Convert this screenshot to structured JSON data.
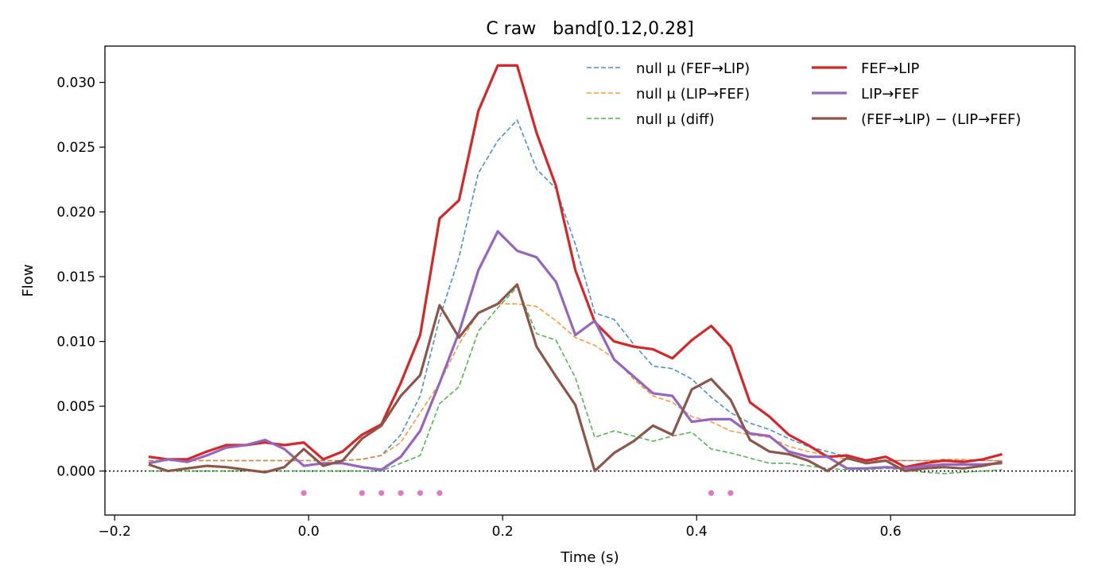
{
  "chart_data": {
    "type": "line",
    "title": "C raw   band[0.12,0.28]",
    "xlabel": "Time (s)",
    "ylabel": "Flow",
    "xlim": [
      -0.21,
      0.79
    ],
    "ylim": [
      -0.0034,
      0.0328
    ],
    "xticks": [
      -0.2,
      0.0,
      0.2,
      0.4,
      0.6
    ],
    "xtick_labels": [
      "−0.2",
      "0.0",
      "0.2",
      "0.4",
      "0.6"
    ],
    "yticks": [
      0.0,
      0.005,
      0.01,
      0.015,
      0.02,
      0.025,
      0.03
    ],
    "ytick_labels": [
      "0.000",
      "0.005",
      "0.010",
      "0.015",
      "0.020",
      "0.025",
      "0.030"
    ],
    "grid": false,
    "legend_position": "top-right",
    "zero_line": true,
    "x": [
      -0.165,
      -0.145,
      -0.125,
      -0.105,
      -0.085,
      -0.065,
      -0.045,
      -0.025,
      -0.005,
      0.015,
      0.035,
      0.055,
      0.075,
      0.095,
      0.115,
      0.135,
      0.155,
      0.175,
      0.195,
      0.215,
      0.235,
      0.255,
      0.275,
      0.295,
      0.315,
      0.335,
      0.355,
      0.375,
      0.395,
      0.415,
      0.435,
      0.455,
      0.475,
      0.495,
      0.515,
      0.535,
      0.555,
      0.575,
      0.595,
      0.615,
      0.635,
      0.655,
      0.675,
      0.695,
      0.715
    ],
    "series": [
      {
        "name": "null μ (FEF→LIP)",
        "color": "#1f77b4",
        "style": "dashed",
        "width": 1.6,
        "opacity": 0.8,
        "values": [
          0.0008,
          0.0008,
          0.0008,
          0.0008,
          0.0008,
          0.0008,
          0.0008,
          0.0008,
          0.0008,
          0.0008,
          0.0008,
          0.0009,
          0.0012,
          0.0028,
          0.0058,
          0.0118,
          0.0165,
          0.023,
          0.0255,
          0.0271,
          0.0233,
          0.0218,
          0.0175,
          0.0122,
          0.0117,
          0.0098,
          0.0081,
          0.0079,
          0.0071,
          0.0057,
          0.0045,
          0.0037,
          0.0032,
          0.0025,
          0.0019,
          0.0015,
          0.0011,
          0.0009,
          0.0008,
          0.0008,
          0.0008,
          0.0008,
          0.0008,
          0.0008,
          0.0008
        ]
      },
      {
        "name": "null μ (LIP→FEF)",
        "color": "#ff7f0e",
        "style": "dashed",
        "width": 1.6,
        "opacity": 0.8,
        "values": [
          0.0008,
          0.0008,
          0.0008,
          0.0008,
          0.0008,
          0.0008,
          0.0008,
          0.0008,
          0.0008,
          0.0008,
          0.0008,
          0.0009,
          0.0012,
          0.0022,
          0.0045,
          0.0068,
          0.0098,
          0.0122,
          0.0129,
          0.0129,
          0.0127,
          0.0116,
          0.0103,
          0.0097,
          0.0087,
          0.0071,
          0.0058,
          0.0053,
          0.0042,
          0.0038,
          0.0031,
          0.0028,
          0.0026,
          0.0019,
          0.0015,
          0.0012,
          0.0009,
          0.0008,
          0.0008,
          0.0008,
          0.0008,
          0.0009,
          0.0009,
          0.0008,
          0.0008
        ]
      },
      {
        "name": "null μ (diff)",
        "color": "#2ca02c",
        "style": "dashed",
        "width": 1.6,
        "opacity": 0.8,
        "values": [
          0.0,
          0.0,
          0.0,
          0.0,
          0.0,
          0.0,
          0.0,
          0.0,
          0.0,
          0.0,
          0.0,
          0.0,
          0.0,
          0.0006,
          0.0012,
          0.0052,
          0.0065,
          0.0108,
          0.0126,
          0.0142,
          0.0106,
          0.0101,
          0.0072,
          0.0026,
          0.0031,
          0.0027,
          0.0023,
          0.0027,
          0.003,
          0.0017,
          0.0014,
          0.001,
          0.0006,
          0.0006,
          0.0004,
          0.0002,
          0.0001,
          0.0001,
          0.0002,
          0.0001,
          -0.0001,
          -0.0002,
          -0.0001,
          0.0,
          0.0001
        ]
      },
      {
        "name": "FEF→LIP",
        "color": "#d62728",
        "style": "solid",
        "width": 3.2,
        "opacity": 1,
        "values": [
          0.0011,
          0.0009,
          0.0009,
          0.0015,
          0.002,
          0.002,
          0.0022,
          0.002,
          0.0022,
          0.0009,
          0.0015,
          0.0028,
          0.0036,
          0.0068,
          0.0105,
          0.0195,
          0.0209,
          0.0278,
          0.0313,
          0.0313,
          0.0261,
          0.022,
          0.0155,
          0.0115,
          0.01,
          0.0096,
          0.0094,
          0.0087,
          0.0101,
          0.0112,
          0.0096,
          0.0053,
          0.0042,
          0.0028,
          0.002,
          0.0011,
          0.0012,
          0.0008,
          0.0011,
          0.0003,
          0.0006,
          0.0008,
          0.0007,
          0.0009,
          0.0013
        ]
      },
      {
        "name": "LIP→FEF",
        "color": "#9467bd",
        "style": "solid",
        "width": 3.2,
        "opacity": 1,
        "values": [
          0.0006,
          0.0009,
          0.0007,
          0.0012,
          0.0018,
          0.002,
          0.0024,
          0.0017,
          0.0004,
          0.0006,
          0.0006,
          0.0003,
          0.0001,
          0.0011,
          0.0031,
          0.0068,
          0.0107,
          0.0155,
          0.0185,
          0.017,
          0.0165,
          0.0146,
          0.0105,
          0.0116,
          0.0086,
          0.0073,
          0.006,
          0.0058,
          0.0038,
          0.004,
          0.004,
          0.0029,
          0.0027,
          0.0015,
          0.0011,
          0.0011,
          0.0002,
          0.0002,
          0.0003,
          0.0002,
          0.0004,
          0.0005,
          0.0005,
          0.0005,
          0.0006
        ]
      },
      {
        "name": "(FEF→LIP) − (LIP→FEF)",
        "color": "#8c564b",
        "style": "solid",
        "width": 3.2,
        "opacity": 1,
        "values": [
          0.0005,
          0.0,
          0.0002,
          0.0004,
          0.0003,
          0.0001,
          -0.0001,
          0.0003,
          0.0017,
          0.0004,
          0.0008,
          0.0025,
          0.0035,
          0.0058,
          0.0074,
          0.0128,
          0.0103,
          0.0122,
          0.0129,
          0.0144,
          0.0096,
          0.0073,
          0.0051,
          0.0,
          0.0014,
          0.0023,
          0.0035,
          0.0028,
          0.0063,
          0.0071,
          0.0055,
          0.0024,
          0.0015,
          0.0013,
          0.0008,
          0.0,
          0.001,
          0.0006,
          0.0008,
          0.0,
          0.0002,
          0.0003,
          0.0002,
          0.0004,
          0.0007
        ]
      }
    ],
    "significance_markers": {
      "color": "#e377c2",
      "y": -0.0017,
      "x": [
        -0.005,
        0.055,
        0.075,
        0.095,
        0.115,
        0.135,
        0.415,
        0.435
      ]
    }
  }
}
